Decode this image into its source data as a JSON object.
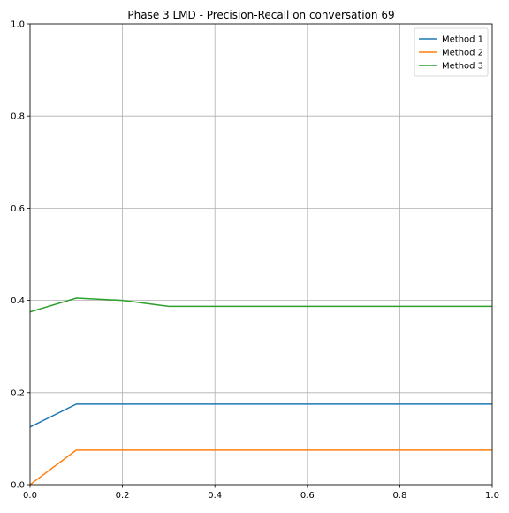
{
  "chart_data": {
    "type": "line",
    "title": "Phase 3 LMD - Precision-Recall on conversation 69",
    "xlabel": "",
    "ylabel": "",
    "xlim": [
      0,
      1
    ],
    "ylim": [
      0,
      1
    ],
    "grid": true,
    "legend_position": "top-right",
    "x_ticks": [
      "0.0",
      "0.2",
      "0.4",
      "0.6",
      "0.8",
      "1.0"
    ],
    "y_ticks": [
      "0.0",
      "0.2",
      "0.4",
      "0.6",
      "0.8",
      "1.0"
    ],
    "x": [
      0.0,
      0.1,
      0.2,
      0.3,
      0.4,
      0.5,
      0.6,
      0.7,
      0.8,
      0.9,
      1.0
    ],
    "series": [
      {
        "name": "Method 1",
        "color": "#1f77b4",
        "values": [
          0.125,
          0.175,
          0.175,
          0.175,
          0.175,
          0.175,
          0.175,
          0.175,
          0.175,
          0.175,
          0.175
        ]
      },
      {
        "name": "Method 2",
        "color": "#ff7f0e",
        "values": [
          0.0,
          0.075,
          0.075,
          0.075,
          0.075,
          0.075,
          0.075,
          0.075,
          0.075,
          0.075,
          0.075
        ]
      },
      {
        "name": "Method 3",
        "color": "#2ca02c",
        "values": [
          0.375,
          0.405,
          0.4,
          0.387,
          0.387,
          0.387,
          0.387,
          0.387,
          0.387,
          0.387,
          0.387
        ]
      }
    ]
  }
}
